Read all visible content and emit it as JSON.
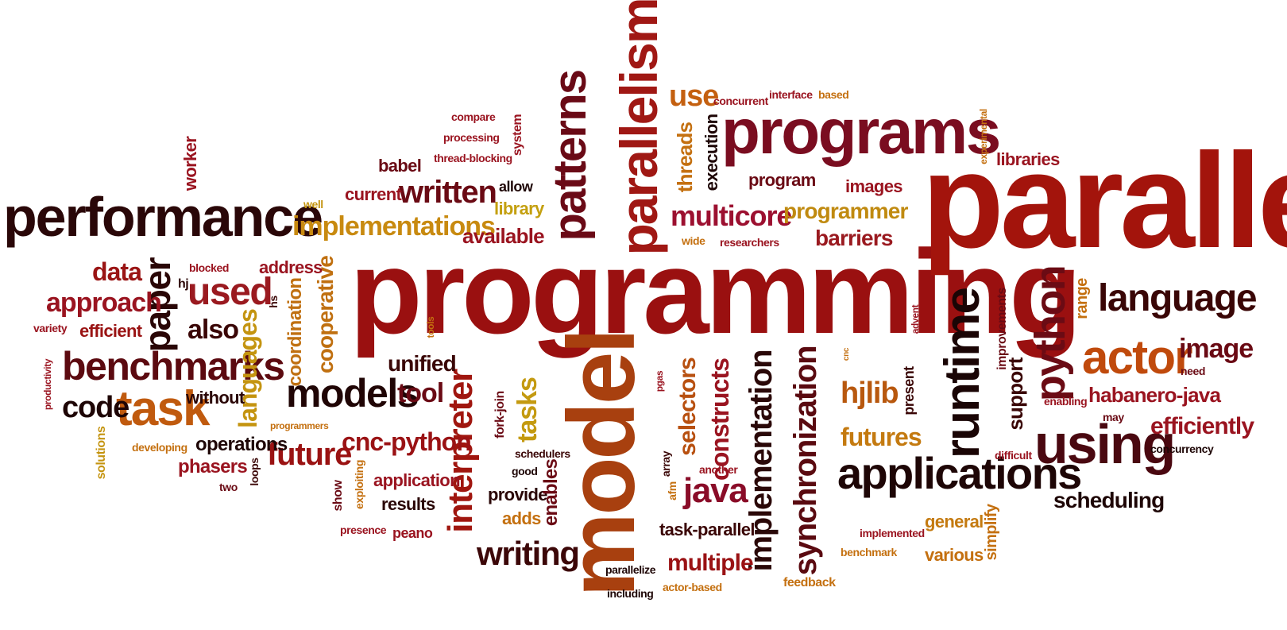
{
  "words": [
    {
      "text": "programming",
      "color": "#9a1010"
    },
    {
      "text": "parallel",
      "color": "#a3140c"
    },
    {
      "text": "model",
      "color": "#a8400f"
    },
    {
      "text": "performance",
      "color": "#2a0708"
    },
    {
      "text": "programs",
      "color": "#7a0d20"
    },
    {
      "text": "parallelism",
      "color": "#a01814"
    },
    {
      "text": "patterns",
      "color": "#6a0a16"
    },
    {
      "text": "runtime",
      "color": "#1a0505"
    },
    {
      "text": "applications",
      "color": "#1e0606"
    },
    {
      "text": "using",
      "color": "#4a0810"
    },
    {
      "text": "synchronization",
      "color": "#5a0a10"
    },
    {
      "text": "implementation",
      "color": "#2a0808"
    },
    {
      "text": "python",
      "color": "#6b0b14"
    },
    {
      "text": "interpreter",
      "color": "#a0160f"
    },
    {
      "text": "benchmarks",
      "color": "#5c0a10"
    },
    {
      "text": "models",
      "color": "#200505"
    },
    {
      "text": "task",
      "color": "#c05a0e"
    },
    {
      "text": "actor",
      "color": "#c04a0c"
    },
    {
      "text": "language",
      "color": "#3a0606"
    },
    {
      "text": "written",
      "color": "#6a0a14"
    },
    {
      "text": "writing",
      "color": "#3c0708"
    },
    {
      "text": "multicore",
      "color": "#9c1030"
    },
    {
      "text": "used",
      "color": "#9a1a20"
    },
    {
      "text": "paper",
      "color": "#2a0606"
    },
    {
      "text": "implementations",
      "color": "#c88a10"
    },
    {
      "text": "future",
      "color": "#9a1212"
    },
    {
      "text": "code",
      "color": "#1e0505"
    },
    {
      "text": "java",
      "color": "#8a0c28"
    },
    {
      "text": "cnc-python",
      "color": "#9a1214"
    },
    {
      "text": "hjlib",
      "color": "#b8580e"
    },
    {
      "text": "scheduling",
      "color": "#1e0606"
    },
    {
      "text": "image",
      "color": "#6a0a14"
    },
    {
      "text": "approach",
      "color": "#9a1420"
    },
    {
      "text": "data",
      "color": "#9a1414"
    },
    {
      "text": "languages",
      "color": "#c49410"
    },
    {
      "text": "futures",
      "color": "#c47a10"
    },
    {
      "text": "programmer",
      "color": "#c08a10"
    },
    {
      "text": "use",
      "color": "#c46010"
    },
    {
      "text": "barriers",
      "color": "#9a1a20"
    },
    {
      "text": "also",
      "color": "#3a0606"
    },
    {
      "text": "tool",
      "color": "#6a0a14"
    },
    {
      "text": "unified",
      "color": "#3a0606"
    },
    {
      "text": "constructs",
      "color": "#9a1420"
    },
    {
      "text": "selectors",
      "color": "#b85010"
    },
    {
      "text": "tasks",
      "color": "#c49a10"
    },
    {
      "text": "habanero-java",
      "color": "#9a1420"
    },
    {
      "text": "efficiently",
      "color": "#9a1420"
    },
    {
      "text": "cooperative",
      "color": "#c07010"
    },
    {
      "text": "coordination",
      "color": "#c07010"
    },
    {
      "text": "multiple",
      "color": "#9a1214"
    },
    {
      "text": "support",
      "color": "#3a0606"
    },
    {
      "text": "threads",
      "color": "#c47010"
    },
    {
      "text": "available",
      "color": "#9a1420"
    },
    {
      "text": "phasers",
      "color": "#9a1420"
    },
    {
      "text": "operations",
      "color": "#1e0606"
    },
    {
      "text": "efficient",
      "color": "#9a1414"
    },
    {
      "text": "without",
      "color": "#2a0606"
    },
    {
      "text": "general",
      "color": "#c47a10"
    },
    {
      "text": "various",
      "color": "#c47010"
    },
    {
      "text": "task-parallel",
      "color": "#3a0606"
    },
    {
      "text": "application",
      "color": "#9a1420"
    },
    {
      "text": "results",
      "color": "#2a0606"
    },
    {
      "text": "provide",
      "color": "#2a0606"
    },
    {
      "text": "enables",
      "color": "#6a0a14"
    },
    {
      "text": "adds",
      "color": "#c47010"
    },
    {
      "text": "execution",
      "color": "#1e0606"
    },
    {
      "text": "images",
      "color": "#9a1420"
    },
    {
      "text": "program",
      "color": "#6a0a14"
    },
    {
      "text": "libraries",
      "color": "#9a1420"
    },
    {
      "text": "current",
      "color": "#9a1420"
    },
    {
      "text": "babel",
      "color": "#6a0a14"
    },
    {
      "text": "library",
      "color": "#c4a010"
    },
    {
      "text": "allow",
      "color": "#1e0606"
    },
    {
      "text": "address",
      "color": "#9a1420"
    },
    {
      "text": "worker",
      "color": "#9a1420"
    },
    {
      "text": "simplify",
      "color": "#c47010"
    },
    {
      "text": "improvements",
      "color": "#6a0a14"
    },
    {
      "text": "present",
      "color": "#3a0606"
    },
    {
      "text": "range",
      "color": "#c47010"
    },
    {
      "text": "need",
      "color": "#6a0a14"
    },
    {
      "text": "enabling",
      "color": "#9a1420"
    },
    {
      "text": "may",
      "color": "#6a0a14"
    },
    {
      "text": "concurrency",
      "color": "#1e0606"
    },
    {
      "text": "difficult",
      "color": "#9a1420"
    },
    {
      "text": "implemented",
      "color": "#9a1420"
    },
    {
      "text": "benchmark",
      "color": "#c47010"
    },
    {
      "text": "feedback",
      "color": "#c47010"
    },
    {
      "text": "actor-based",
      "color": "#c47010"
    },
    {
      "text": "including",
      "color": "#1e0606"
    },
    {
      "text": "parallelize",
      "color": "#1e0606"
    },
    {
      "text": "afm",
      "color": "#c47010"
    },
    {
      "text": "array",
      "color": "#3a0606"
    },
    {
      "text": "another",
      "color": "#9a1420"
    },
    {
      "text": "pgas",
      "color": "#9a1420"
    },
    {
      "text": "fork-join",
      "color": "#6a0a14"
    },
    {
      "text": "schedulers",
      "color": "#3a0606"
    },
    {
      "text": "good",
      "color": "#1e0606"
    },
    {
      "text": "peano",
      "color": "#9a1420"
    },
    {
      "text": "presence",
      "color": "#9a1420"
    },
    {
      "text": "exploiting",
      "color": "#c47010"
    },
    {
      "text": "show",
      "color": "#6a0a14"
    },
    {
      "text": "loops",
      "color": "#3a0606"
    },
    {
      "text": "two",
      "color": "#6a0a14"
    },
    {
      "text": "programmers",
      "color": "#c47010"
    },
    {
      "text": "developing",
      "color": "#c47010"
    },
    {
      "text": "solutions",
      "color": "#c49410"
    },
    {
      "text": "productivity",
      "color": "#9a1420"
    },
    {
      "text": "variety",
      "color": "#9a1420"
    },
    {
      "text": "hj",
      "color": "#2a0606"
    },
    {
      "text": "hs",
      "color": "#3a0606"
    },
    {
      "text": "blocked",
      "color": "#9a1420"
    },
    {
      "text": "tools",
      "color": "#c47010"
    },
    {
      "text": "compare",
      "color": "#9a1420"
    },
    {
      "text": "processing",
      "color": "#9a1420"
    },
    {
      "text": "thread-blocking",
      "color": "#9a1420"
    },
    {
      "text": "system",
      "color": "#9a1420"
    },
    {
      "text": "concurrent",
      "color": "#9a1420"
    },
    {
      "text": "interface",
      "color": "#9a1420"
    },
    {
      "text": "based",
      "color": "#c47010"
    },
    {
      "text": "experimental",
      "color": "#c47010"
    },
    {
      "text": "well",
      "color": "#c49410"
    },
    {
      "text": "wide",
      "color": "#c47010"
    },
    {
      "text": "researchers",
      "color": "#9a1420"
    },
    {
      "text": "advent",
      "color": "#9a1420"
    },
    {
      "text": "cnc",
      "color": "#c47010"
    }
  ]
}
